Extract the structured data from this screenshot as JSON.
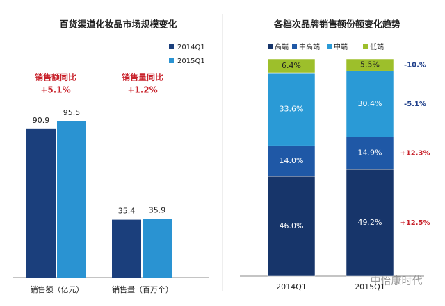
{
  "chart_data": [
    {
      "type": "bar",
      "title": "百货渠道化妆品市场规模变化",
      "categories": [
        "销售额（亿元）",
        "销售量（百万个）"
      ],
      "series": [
        {
          "name": "2014Q1",
          "color": "#1b3f7c",
          "values": [
            90.9,
            35.4
          ]
        },
        {
          "name": "2015Q1",
          "color": "#2a93d2",
          "values": [
            95.5,
            35.9
          ]
        }
      ],
      "annotations": [
        "销售额同比",
        "+5.1%",
        "销售量同比",
        "+1.2%"
      ]
    },
    {
      "type": "stacked-bar",
      "title": "各档次品牌销售额份额变化趋势",
      "categories": [
        "2014Q1",
        "2015Q1"
      ],
      "ylim": [
        0,
        100
      ],
      "series": [
        {
          "name": "高端",
          "color": "#17356a",
          "values": [
            46.0,
            49.2
          ],
          "value_labels": [
            "46.0%",
            "49.2%"
          ],
          "change": "+12.5%"
        },
        {
          "name": "中高端",
          "color": "#1f58a6",
          "values": [
            14.0,
            14.9
          ],
          "value_labels": [
            "14.0%",
            "14.9%"
          ],
          "change": "+12.3%"
        },
        {
          "name": "中端",
          "color": "#2a9ad6",
          "values": [
            33.6,
            30.4
          ],
          "value_labels": [
            "33.6%",
            "30.4%"
          ],
          "change": "-5.1%"
        },
        {
          "name": "低端",
          "color": "#9dbf2b",
          "values": [
            6.4,
            5.5
          ],
          "value_labels": [
            "6.4%",
            "5.5%"
          ],
          "change": "-10.%"
        }
      ]
    }
  ],
  "watermark": "中怡康时代"
}
